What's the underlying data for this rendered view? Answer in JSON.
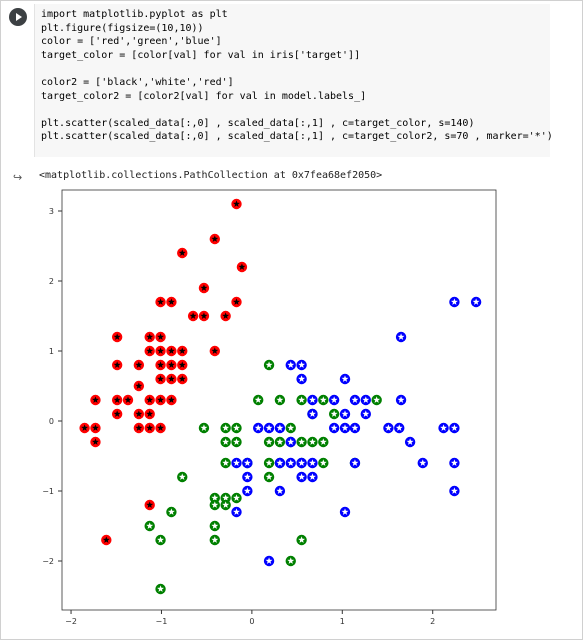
{
  "cell": {
    "run_button_label": "Run cell",
    "code_lines": [
      "import matplotlib.pyplot as plt",
      "plt.figure(figsize=(10,10))",
      "color = ['red','green','blue']",
      "target_color = [color[val] for val in iris['target']]",
      "",
      "color2 = ['black','white','red']",
      "target_color2 = [color2[val] for val in model.labels_]",
      "",
      "plt.scatter(scaled_data[:,0] , scaled_data[:,1] , c=target_color, s=140)",
      "plt.scatter(scaled_data[:,0] , scaled_data[:,1] , c=target_color2, s=70 , marker='*')"
    ]
  },
  "output": {
    "icon": "output-arrow-icon",
    "text": "<matplotlib.collections.PathCollection at 0x7fea68ef2050>"
  },
  "chart_data": {
    "type": "scatter",
    "xlim": [
      -2.1,
      2.7
    ],
    "ylim": [
      -2.7,
      3.3
    ],
    "x_ticks": [
      "−2",
      "−1",
      "0",
      "1",
      "2"
    ],
    "y_ticks": [
      "−2",
      "−1",
      "0",
      "1",
      "2",
      "3"
    ],
    "grid": false,
    "series": [
      {
        "color": "#ff0000",
        "star": "#000000",
        "points": [
          [
            -0.17,
            3.1
          ],
          [
            -0.17,
            1.7
          ],
          [
            -0.11,
            2.2
          ],
          [
            -0.41,
            2.6
          ],
          [
            -0.53,
            1.9
          ],
          [
            -0.29,
            1.5
          ],
          [
            -0.53,
            1.5
          ],
          [
            -0.65,
            1.5
          ],
          [
            -0.89,
            1.7
          ],
          [
            -1.01,
            1.7
          ],
          [
            -0.77,
            2.4
          ],
          [
            -0.89,
            1.0
          ],
          [
            -1.01,
            1.0
          ],
          [
            -1.13,
            1.0
          ],
          [
            -1.13,
            1.2
          ],
          [
            -1.01,
            1.2
          ],
          [
            -0.77,
            1.0
          ],
          [
            -0.41,
            1.0
          ],
          [
            -0.77,
            0.8
          ],
          [
            -0.89,
            0.8
          ],
          [
            -1.01,
            0.8
          ],
          [
            -1.25,
            0.8
          ],
          [
            -1.49,
            0.8
          ],
          [
            -1.49,
            1.2
          ],
          [
            -0.77,
            0.6
          ],
          [
            -0.89,
            0.6
          ],
          [
            -1.01,
            0.6
          ],
          [
            -1.25,
            0.5
          ],
          [
            -0.89,
            0.3
          ],
          [
            -1.01,
            0.3
          ],
          [
            -1.13,
            0.3
          ],
          [
            -1.37,
            0.3
          ],
          [
            -1.49,
            0.3
          ],
          [
            -1.73,
            0.3
          ],
          [
            -1.25,
            0.1
          ],
          [
            -1.49,
            0.1
          ],
          [
            -1.13,
            0.1
          ],
          [
            -1.01,
            -0.1
          ],
          [
            -1.13,
            -0.1
          ],
          [
            -1.25,
            -0.1
          ],
          [
            -1.73,
            -0.1
          ],
          [
            -1.85,
            -0.1
          ],
          [
            -1.73,
            -0.3
          ],
          [
            -1.61,
            -1.7
          ],
          [
            -1.13,
            -1.2
          ]
        ]
      },
      {
        "color": "#008000",
        "star": "#ffffff",
        "points": [
          [
            0.19,
            0.8
          ],
          [
            0.07,
            0.3
          ],
          [
            0.31,
            0.3
          ],
          [
            0.55,
            0.3
          ],
          [
            0.79,
            0.3
          ],
          [
            1.38,
            0.3
          ],
          [
            0.67,
            0.1
          ],
          [
            0.91,
            0.1
          ],
          [
            -0.53,
            -0.1
          ],
          [
            -0.29,
            -0.1
          ],
          [
            -0.17,
            -0.1
          ],
          [
            -0.29,
            -0.3
          ],
          [
            -0.17,
            -0.3
          ],
          [
            0.19,
            -0.3
          ],
          [
            0.31,
            -0.3
          ],
          [
            0.43,
            -0.3
          ],
          [
            0.55,
            -0.3
          ],
          [
            0.67,
            -0.3
          ],
          [
            0.79,
            -0.3
          ],
          [
            -0.29,
            -0.6
          ],
          [
            -0.05,
            -0.6
          ],
          [
            0.19,
            -0.6
          ],
          [
            0.31,
            -0.6
          ],
          [
            0.55,
            -0.6
          ],
          [
            0.79,
            -0.6
          ],
          [
            1.14,
            -0.6
          ],
          [
            -0.77,
            -0.8
          ],
          [
            0.19,
            -0.8
          ],
          [
            -0.41,
            -1.1
          ],
          [
            -0.17,
            -1.1
          ],
          [
            -0.29,
            -1.1
          ],
          [
            -0.41,
            -1.2
          ],
          [
            -0.29,
            -1.2
          ],
          [
            -0.41,
            -1.5
          ],
          [
            -0.41,
            -1.7
          ],
          [
            -0.89,
            -1.3
          ],
          [
            -1.13,
            -1.5
          ],
          [
            -1.01,
            -1.7
          ],
          [
            0.55,
            -1.7
          ],
          [
            0.43,
            -2.0
          ],
          [
            -1.01,
            -2.4
          ],
          [
            0.43,
            -0.1
          ]
        ]
      },
      {
        "color": "#0000ff",
        "star": "#ffffff",
        "points": [
          [
            2.24,
            1.7
          ],
          [
            2.48,
            1.7
          ],
          [
            1.65,
            1.2
          ],
          [
            0.43,
            0.8
          ],
          [
            0.55,
            0.8
          ],
          [
            0.55,
            0.6
          ],
          [
            1.03,
            0.6
          ],
          [
            0.67,
            0.3
          ],
          [
            0.91,
            0.3
          ],
          [
            1.14,
            0.3
          ],
          [
            1.26,
            0.3
          ],
          [
            1.65,
            0.3
          ],
          [
            0.67,
            0.1
          ],
          [
            1.03,
            0.1
          ],
          [
            1.26,
            0.1
          ],
          [
            0.07,
            -0.1
          ],
          [
            0.19,
            -0.1
          ],
          [
            0.31,
            -0.1
          ],
          [
            0.91,
            -0.1
          ],
          [
            1.03,
            -0.1
          ],
          [
            1.14,
            -0.1
          ],
          [
            1.51,
            -0.1
          ],
          [
            1.63,
            -0.1
          ],
          [
            2.12,
            -0.1
          ],
          [
            2.24,
            -0.1
          ],
          [
            0.43,
            -0.3
          ],
          [
            1.75,
            -0.3
          ],
          [
            -0.17,
            -0.6
          ],
          [
            -0.05,
            -0.6
          ],
          [
            0.31,
            -0.6
          ],
          [
            0.43,
            -0.6
          ],
          [
            0.55,
            -0.6
          ],
          [
            0.67,
            -0.6
          ],
          [
            1.89,
            -0.6
          ],
          [
            2.24,
            -0.6
          ],
          [
            -0.05,
            -0.8
          ],
          [
            0.55,
            -0.8
          ],
          [
            0.67,
            -0.8
          ],
          [
            -0.05,
            -1.0
          ],
          [
            0.31,
            -1.0
          ],
          [
            2.24,
            -1.0
          ],
          [
            -0.17,
            -1.3
          ],
          [
            1.03,
            -1.3
          ],
          [
            0.19,
            -2.0
          ],
          [
            1.14,
            -0.6
          ]
        ]
      }
    ]
  }
}
